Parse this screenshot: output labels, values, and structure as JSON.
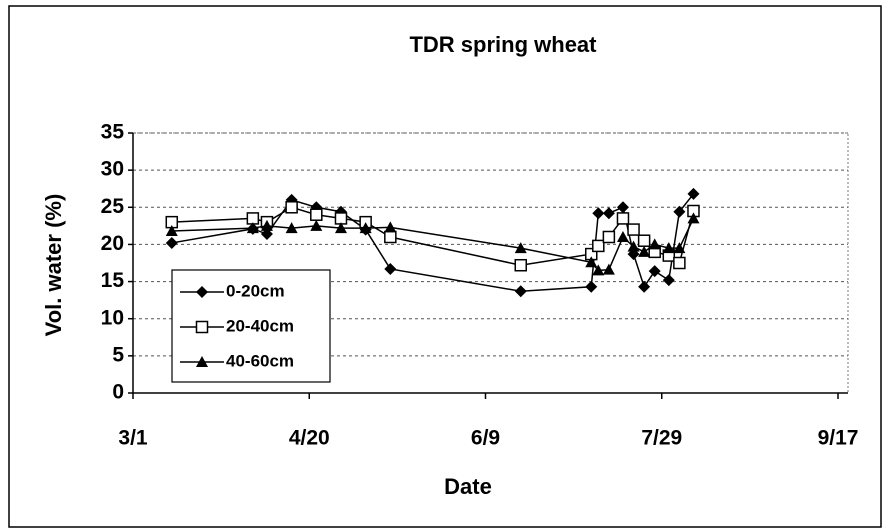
{
  "chart_data": {
    "type": "line",
    "title": "TDR spring wheat",
    "x_label": "Date",
    "y_label": "Vol. water (%)",
    "x": [
      "3/12",
      "4/4",
      "4/8",
      "4/15",
      "4/22",
      "4/29",
      "5/6",
      "5/13",
      "6/19",
      "7/9",
      "7/11",
      "7/14",
      "7/18",
      "7/21",
      "7/24",
      "7/27",
      "7/31",
      "8/3",
      "8/7"
    ],
    "series": [
      {
        "name": "0-20cm",
        "color": "#000000",
        "marker": "diamond",
        "values": [
          20.2,
          22.1,
          21.4,
          26,
          25,
          24.4,
          22,
          16.7,
          13.7,
          14.3,
          24.2,
          24.2,
          25,
          18.7,
          14.3,
          16.4,
          15.2,
          24.4,
          26.8
        ]
      },
      {
        "name": "20-40cm",
        "color": "#000000",
        "marker": "square",
        "values": [
          23,
          23.5,
          23,
          25,
          24,
          23.5,
          23,
          21,
          17.2,
          18.7,
          19.8,
          21,
          23.5,
          22,
          20.5,
          19,
          18.5,
          17.5,
          24.5
        ]
      },
      {
        "name": "40-60cm",
        "color": "#000000",
        "marker": "triangle",
        "values": [
          21.8,
          22.2,
          22.5,
          22.2,
          22.5,
          22.2,
          22.2,
          22.3,
          19.5,
          17.6,
          16.5,
          16.6,
          21,
          19.7,
          19,
          20,
          19.5,
          19.5,
          23.5
        ]
      }
    ],
    "xlim": [
      "3/1",
      "9/17"
    ],
    "xticks": [
      "3/1",
      "4/20",
      "6/9",
      "7/29",
      "9/17"
    ],
    "ylim": [
      0,
      35
    ],
    "yticks": [
      0,
      5,
      10,
      15,
      20,
      25,
      30,
      35
    ],
    "grid": true,
    "legend": "lower left"
  }
}
